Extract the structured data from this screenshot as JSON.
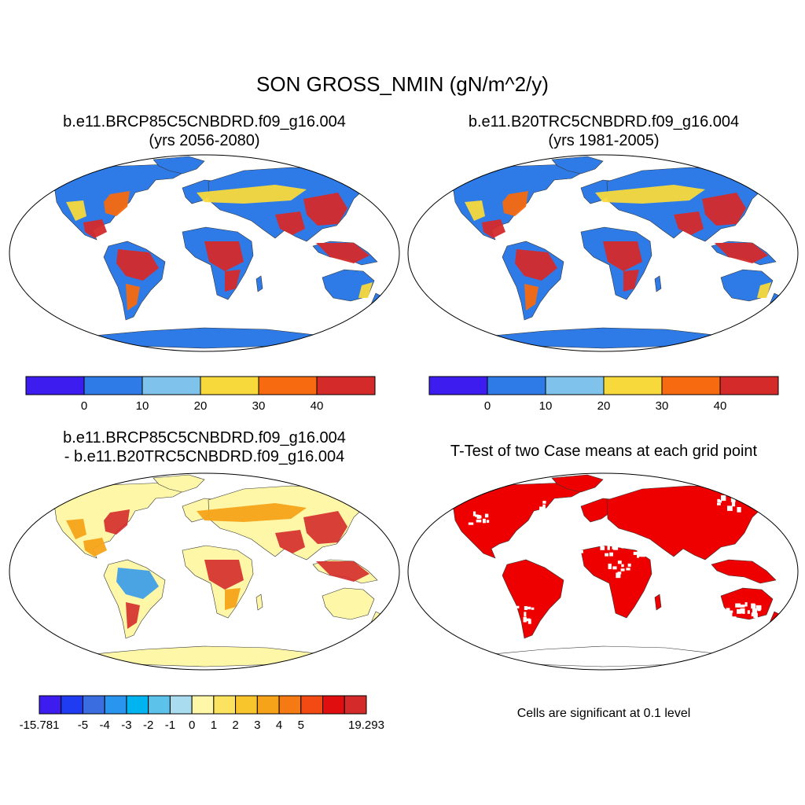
{
  "figure": {
    "title": "SON GROSS_NMIN (gN/m^2/y)"
  },
  "panels": [
    {
      "id": "case1",
      "title_line1": "b.e11.BRCP85C5CNBDRD.f09_g16.004",
      "title_line2": "(yrs 2056-2080)",
      "colorbar": {
        "colors": [
          "#3d1cf0",
          "#2e7be8",
          "#7fc3ec",
          "#f8d93c",
          "#f76a10",
          "#d42a2a"
        ],
        "labels": [
          "0",
          "10",
          "20",
          "30",
          "40"
        ]
      }
    },
    {
      "id": "case2",
      "title_line1": "b.e11.B20TRC5CNBDRD.f09_g16.004",
      "title_line2": "(yrs 1981-2005)",
      "colorbar": {
        "colors": [
          "#3d1cf0",
          "#2e7be8",
          "#7fc3ec",
          "#f8d93c",
          "#f76a10",
          "#d42a2a"
        ],
        "labels": [
          "0",
          "10",
          "20",
          "30",
          "40"
        ]
      }
    },
    {
      "id": "difference",
      "title_line1": "b.e11.BRCP85C5CNBDRD.f09_g16.004",
      "title_line2": "- b.e11.B20TRC5CNBDRD.f09_g16.004",
      "colorbar": {
        "colors": [
          "#3d1cf0",
          "#1f3cf2",
          "#3a6ee0",
          "#2a95ef",
          "#00b4f0",
          "#5cc2ea",
          "#a9dcef",
          "#fef7a8",
          "#fbe35f",
          "#f8c52c",
          "#f7a319",
          "#f57a14",
          "#f24a12",
          "#e00e0e",
          "#d42a2a"
        ],
        "labels": [
          "-15.781",
          "-5",
          "-4",
          "-3",
          "-2",
          "-1",
          "0",
          "1",
          "2",
          "3",
          "4",
          "5",
          "19.293"
        ]
      }
    },
    {
      "id": "ttest",
      "title_line1": "T-Test of two Case means at each grid point",
      "footnote": "Cells are significant at 0.1 level",
      "significant_color": "#ee0000"
    }
  ]
}
